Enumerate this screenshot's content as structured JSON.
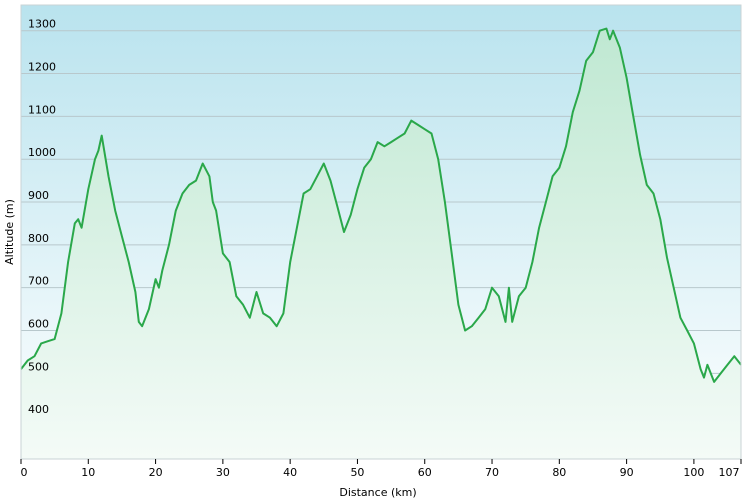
{
  "chart_data": {
    "type": "area",
    "title": "",
    "xlabel": "Distance  (km)",
    "ylabel": "Altitude (m)",
    "xlim": [
      0,
      107
    ],
    "ylim": [
      300,
      1360
    ],
    "xticks": [
      0,
      10,
      20,
      30,
      40,
      50,
      60,
      70,
      80,
      90,
      100,
      107
    ],
    "yticks": [
      400,
      500,
      600,
      700,
      800,
      900,
      1000,
      1100,
      1200,
      1300
    ],
    "grid": true,
    "legend": "none",
    "colors": {
      "line": "#2aa84a",
      "fill_top": "#c7ebd8",
      "fill_bottom": "#f2fbf5",
      "bg_top": "#b9e3ee",
      "bg_bottom": "#ffffff",
      "grid": "#b8c8cc"
    },
    "series": [
      {
        "x": [
          0,
          0.5,
          1,
          2,
          3,
          4,
          5,
          6,
          7,
          8,
          8.5,
          9,
          10,
          11,
          11.5,
          12,
          13,
          14,
          15,
          16,
          17,
          17.5,
          18,
          19,
          20,
          20.5,
          21,
          22,
          23,
          24,
          25,
          26,
          27,
          28,
          28.5,
          29,
          30,
          31,
          32,
          33,
          34,
          35,
          36,
          37,
          38,
          39,
          40,
          41,
          42,
          43,
          44,
          45,
          46,
          47,
          48,
          49,
          50,
          51,
          52,
          53,
          54,
          55,
          56,
          57,
          58,
          59,
          60,
          61,
          62,
          63,
          64,
          65,
          66,
          67,
          68,
          69,
          70,
          71,
          72,
          72.5,
          73,
          74,
          75,
          76,
          77,
          78,
          79,
          80,
          81,
          82,
          83,
          84,
          85,
          86,
          87,
          87.5,
          88,
          89,
          90,
          91,
          92,
          93,
          94,
          95,
          96,
          97,
          98,
          99,
          100,
          101,
          101.5,
          102,
          103,
          104,
          105,
          106,
          107
        ],
        "y": [
          510,
          520,
          530,
          540,
          570,
          575,
          580,
          640,
          760,
          850,
          860,
          840,
          930,
          1000,
          1020,
          1055,
          960,
          880,
          820,
          760,
          690,
          620,
          610,
          650,
          720,
          700,
          740,
          800,
          880,
          920,
          940,
          950,
          990,
          960,
          900,
          880,
          780,
          760,
          680,
          660,
          630,
          690,
          640,
          630,
          610,
          640,
          760,
          840,
          920,
          930,
          960,
          990,
          950,
          890,
          830,
          870,
          930,
          980,
          1000,
          1040,
          1030,
          1040,
          1050,
          1060,
          1090,
          1080,
          1070,
          1060,
          1000,
          900,
          780,
          660,
          600,
          610,
          630,
          650,
          700,
          680,
          620,
          700,
          620,
          680,
          700,
          760,
          840,
          900,
          960,
          980,
          1030,
          1110,
          1160,
          1230,
          1250,
          1300,
          1305,
          1280,
          1300,
          1260,
          1190,
          1100,
          1010,
          940,
          920,
          860,
          770,
          700,
          630,
          600,
          570,
          510,
          490,
          520,
          480,
          500,
          520,
          540,
          520
        ]
      }
    ]
  }
}
